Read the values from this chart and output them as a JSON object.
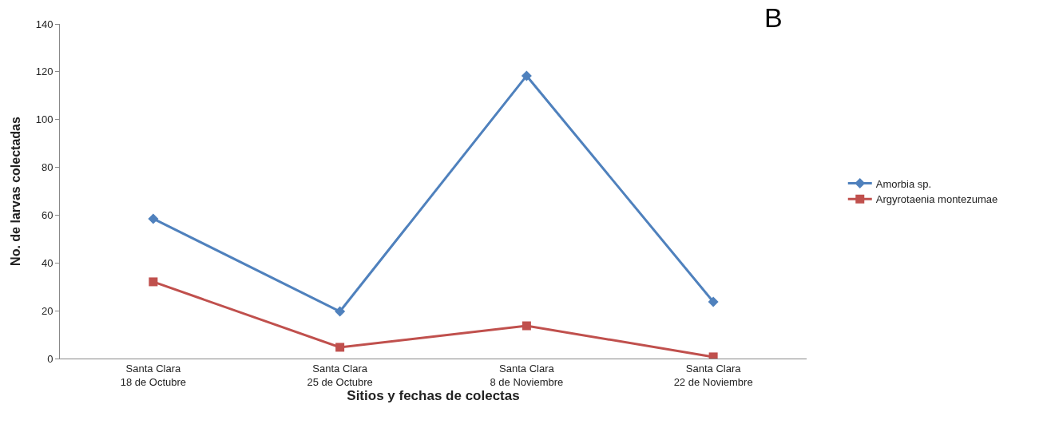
{
  "chart_data": {
    "type": "line",
    "xlabel": "Sitios y fechas de colectas",
    "ylabel": "No. de larvas colectadas",
    "annotations": [
      "B"
    ],
    "categories": [
      "Santa Clara\n18 de Octubre",
      "Santa Clara\n25 de Octubre",
      "Santa Clara\n8 de Noviembre",
      "Santa Clara\n22 de Noviembre"
    ],
    "series": [
      {
        "name": "Amorbia sp.",
        "color": "#4f81bd",
        "marker": "diamond",
        "values": [
          58.5,
          19.7,
          118.3,
          23.7
        ]
      },
      {
        "name": "Argyrotaenia montezumae",
        "color": "#c0504d",
        "marker": "square",
        "values": [
          32.1,
          4.7,
          13.7,
          0.7
        ]
      }
    ],
    "ylim": [
      0,
      140
    ],
    "yticks": [
      0,
      20,
      40,
      60,
      80,
      100,
      120,
      140
    ],
    "legend": "right",
    "line_style": "solid"
  }
}
